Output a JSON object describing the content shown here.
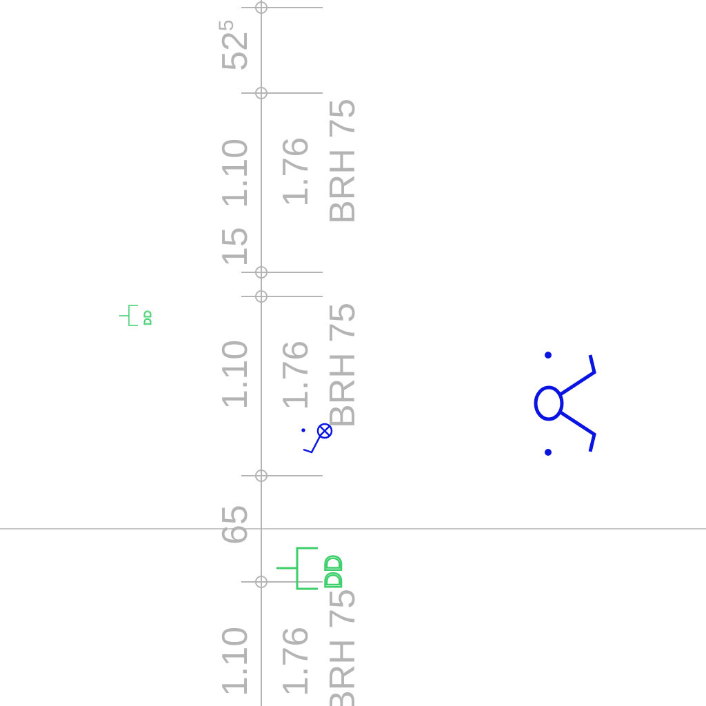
{
  "colors": {
    "dimension_gray": "#b4b4b4",
    "symbol_blue": "#0a14e0",
    "symbol_green": "#3ccf6a"
  },
  "dimensions": {
    "top_value": "52",
    "top_value_sup": "5",
    "upper_height": "1.10",
    "upper_depth": "15",
    "mid_height": "1.10",
    "lower_value": "65",
    "bottom_height": "1.10"
  },
  "openings": {
    "upper_sill": "1.76",
    "upper_label": "BRH 75",
    "mid_sill": "1.76",
    "mid_label": "BRH 75",
    "bottom_sill": "1.76",
    "bottom_label": "BRH 75"
  },
  "symbols": {
    "small_dd_label": "DD",
    "large_dd_label": "DD"
  }
}
